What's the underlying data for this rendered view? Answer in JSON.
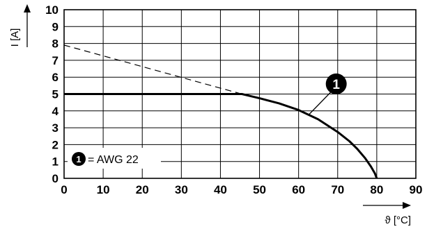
{
  "chart_data": {
    "type": "line",
    "title": "",
    "xlabel": "ϑ [°C]",
    "ylabel": "I [A]",
    "xlim": [
      0,
      90
    ],
    "ylim": [
      0,
      10
    ],
    "x_ticks": [
      "0",
      "10",
      "20",
      "30",
      "40",
      "50",
      "60",
      "70",
      "80",
      "90"
    ],
    "y_ticks": [
      "0",
      "1",
      "2",
      "3",
      "4",
      "5",
      "6",
      "7",
      "8",
      "9",
      "10"
    ],
    "grid": true,
    "series": [
      {
        "style": "solid",
        "points": [
          [
            0,
            5
          ],
          [
            45.5,
            5
          ],
          [
            50,
            4.75
          ],
          [
            55,
            4.45
          ],
          [
            60,
            4.05
          ],
          [
            65,
            3.5
          ],
          [
            70,
            2.75
          ],
          [
            73,
            2.2
          ],
          [
            75,
            1.75
          ],
          [
            77,
            1.2
          ],
          [
            78.5,
            0.7
          ],
          [
            79.5,
            0.3
          ],
          [
            80,
            0
          ]
        ]
      },
      {
        "style": "dashed",
        "points": [
          [
            0,
            7.9
          ],
          [
            45.5,
            5
          ]
        ]
      }
    ],
    "annotations": [
      {
        "marker": "1",
        "text": "= AWG 22",
        "position": "bottom-left"
      },
      {
        "marker": "1",
        "points_to": [
          62.5,
          3.75
        ]
      }
    ]
  }
}
